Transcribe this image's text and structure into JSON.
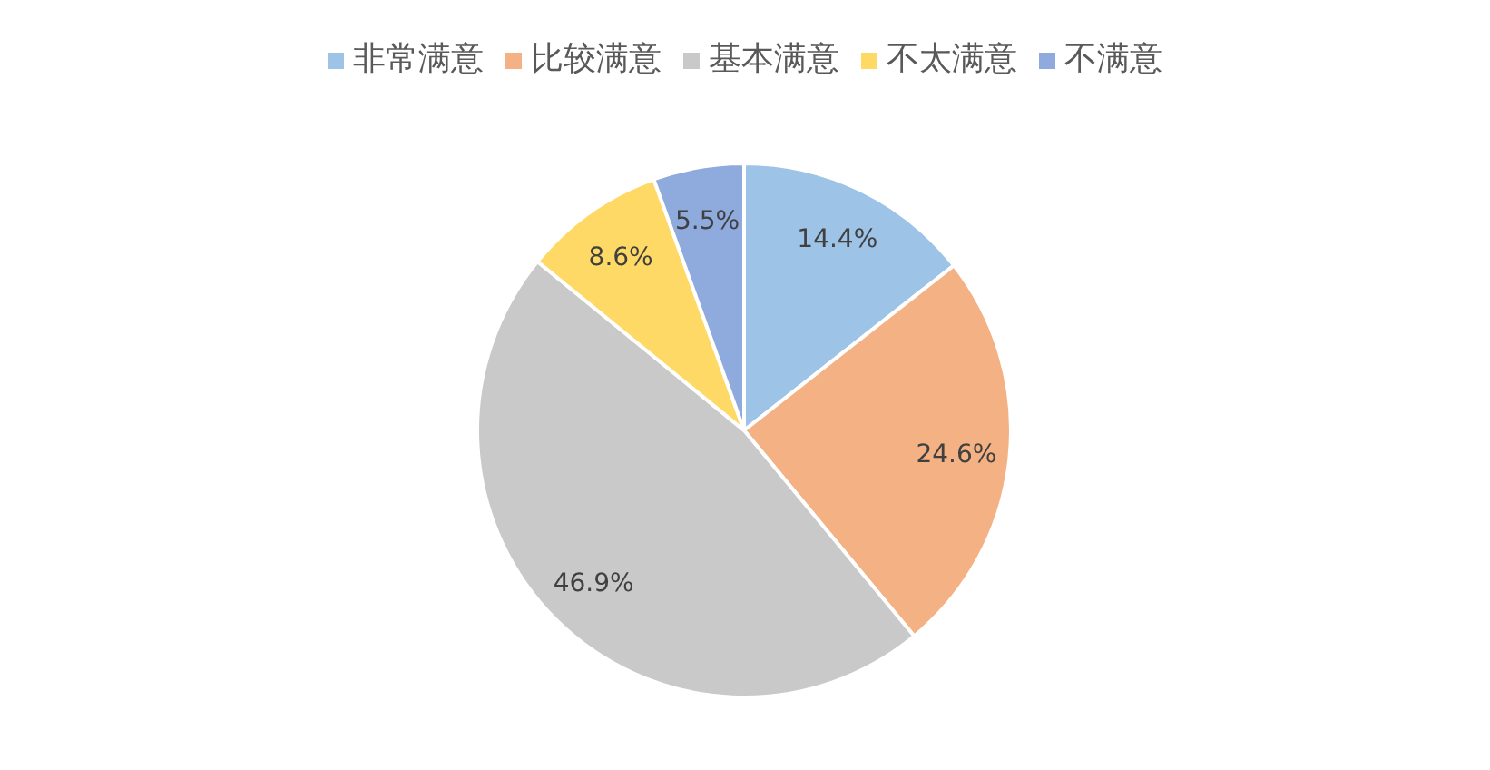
{
  "chart_data": {
    "type": "pie",
    "categories": [
      "非常满意",
      "比较满意",
      "基本满意",
      "不太满意",
      "不满意"
    ],
    "values": [
      14.4,
      24.6,
      46.9,
      8.6,
      5.5
    ],
    "colors": [
      "#9dc3e6",
      "#f4b183",
      "#c9c9c9",
      "#ffd966",
      "#8faadc"
    ],
    "value_labels": [
      "14.4%",
      "24.6%",
      "46.9%",
      "8.6%",
      "5.5%"
    ],
    "legend": "top"
  }
}
